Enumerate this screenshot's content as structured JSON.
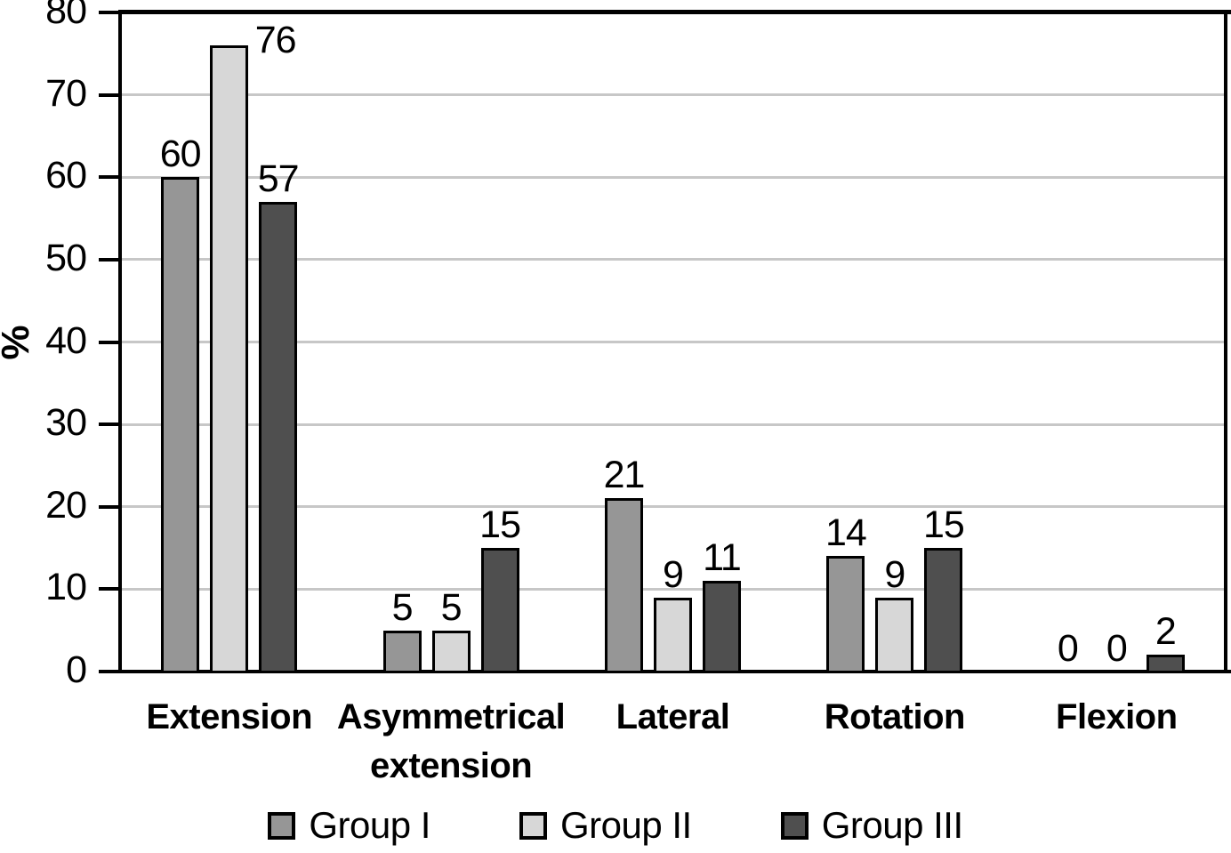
{
  "chart_data": {
    "type": "bar",
    "title": "",
    "xlabel": "",
    "ylabel": "%",
    "ylim": [
      0,
      80
    ],
    "yticks": [
      0,
      10,
      20,
      30,
      40,
      50,
      60,
      70,
      80
    ],
    "grid": true,
    "legend_position": "bottom",
    "categories": [
      "Extension",
      "Asymmetrical\nextension",
      "Lateral",
      "Rotation",
      "Flexion"
    ],
    "series": [
      {
        "name": "Group I",
        "color": "#969696",
        "values": [
          60,
          5,
          21,
          14,
          0
        ]
      },
      {
        "name": "Group II",
        "color": "#d7d7d7",
        "values": [
          76,
          5,
          9,
          9,
          0
        ]
      },
      {
        "name": "Group III",
        "color": "#4f4f4f",
        "values": [
          57,
          15,
          11,
          15,
          2
        ]
      }
    ],
    "bar_outline_color": "#000000",
    "gridline_color": "#c7c7c7",
    "axis_color": "#000000"
  }
}
